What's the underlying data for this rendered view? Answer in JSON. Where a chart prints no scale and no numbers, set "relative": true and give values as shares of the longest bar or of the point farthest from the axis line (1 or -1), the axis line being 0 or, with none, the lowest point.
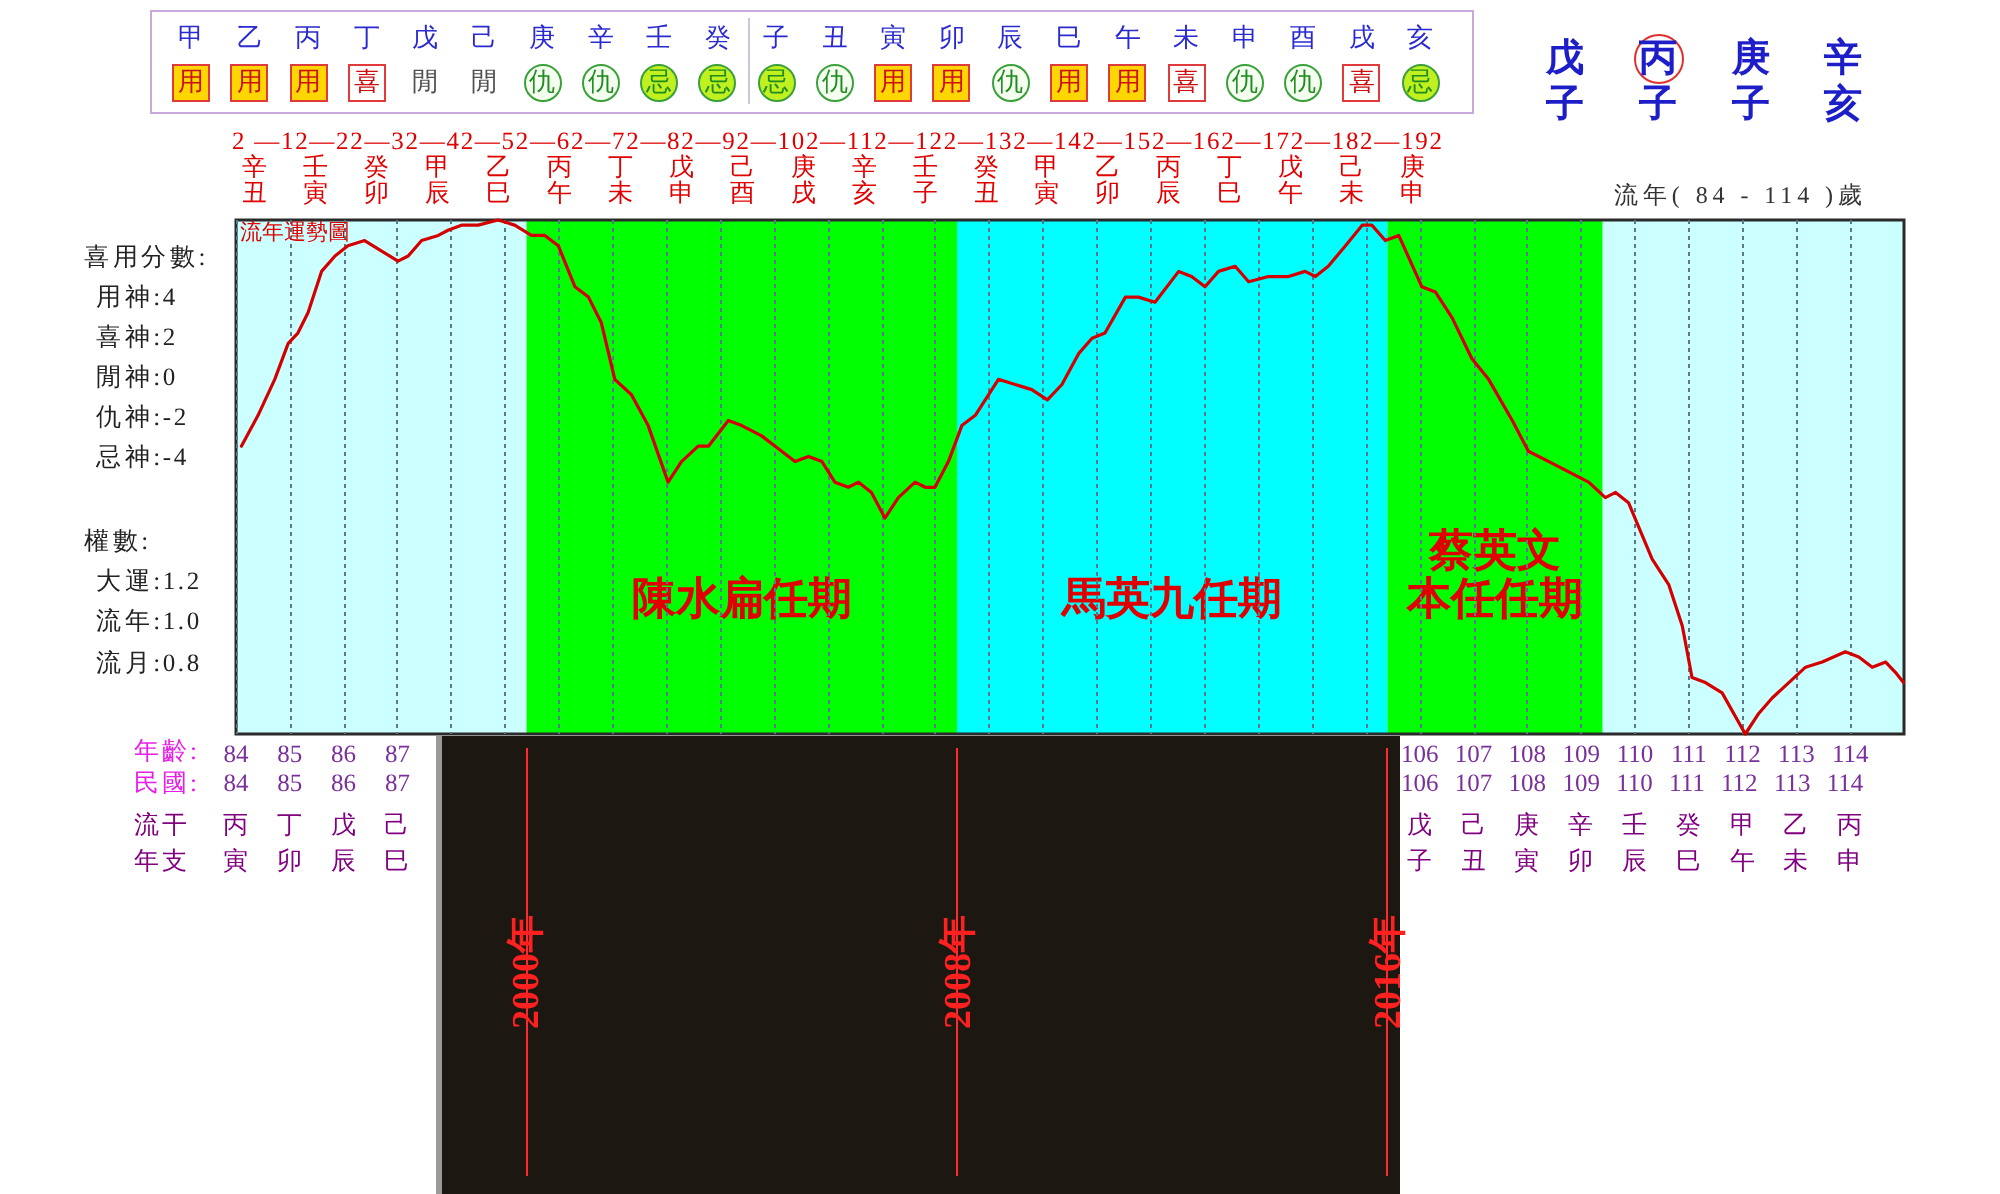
{
  "chart_data": [
    {
      "type": "other",
      "annotations": [
        "甲 乙 丙 丁 戊 己 庚 辛 壬 癸 子 丑 寅 卯 辰 巳 午 未 申 酉 戌 亥",
        "用 用 用 喜 閒 閒 仇 仇 忌 忌 忌 仇 用 用 仇 用 用 喜 仇 仇 喜 忌"
      ],
      "colors": [
        "#ffd700",
        "#ffd700",
        "#ffd700",
        "#ffffff",
        null,
        null,
        "#f4fff0",
        "#f4fff0",
        "#c0f020",
        "#c0f020",
        "#c0f020",
        "#f4fff0",
        "#ffd700",
        "#ffd700",
        "#f4fff0",
        "#ffd700",
        "#ffd700",
        "#ffffff",
        "#f4fff0",
        "#f4fff0",
        "#ffffff",
        "#c0f020"
      ]
    },
    {
      "type": "other",
      "annotations": [
        "戊 丙 庚 辛",
        "子 子 子 亥"
      ],
      "colors": [
        null,
        "#e03030",
        null,
        null
      ]
    },
    {
      "type": "line",
      "title": "流年運勢圖",
      "relative": true,
      "color": "#d40000",
      "x": [
        84.1,
        84.41,
        84.72,
        84.97,
        85.15,
        85.34,
        85.59,
        85.84,
        86.08,
        86.39,
        86.7,
        87.01,
        87.2,
        87.45,
        87.76,
        87.94,
        88.19,
        88.5,
        88.87,
        89.18,
        89.49,
        89.74,
        89.99,
        90.3,
        90.55,
        90.79,
        91.04,
        91.35,
        91.66,
        92.03,
        92.28,
        92.59,
        92.78,
        93.15,
        93.4,
        93.77,
        94.02,
        94.39,
        94.64,
        94.89,
        95.13,
        95.38,
        95.57,
        95.81,
        96.06,
        96.31,
        96.62,
        96.81,
        96.99,
        97.24,
        97.49,
        97.74,
        98.17,
        98.48,
        98.79,
        99.08,
        99.35,
        99.66,
        99.91,
        100.15,
        100.53,
        100.77,
        101.08,
        101.52,
        101.76,
        102.01,
        102.26,
        102.57,
        102.82,
        103.19,
        103.56,
        103.87,
        104.06,
        104.3,
        104.62,
        104.93,
        105.11,
        105.36,
        105.61,
        106.04,
        106.29,
        106.6,
        106.97,
        107.28,
        107.72,
        108.02,
        108.4,
        108.77,
        109.14,
        109.45,
        109.64,
        109.88,
        110.32,
        110.63,
        110.88,
        111.06,
        111.31,
        111.62,
        112.05,
        112.3,
        112.55,
        112.86,
        113.17,
        113.48,
        113.91,
        114.16,
        114.41,
        114.66,
        114.84,
        114.99
      ],
      "values": [
        0.56,
        0.62,
        0.69,
        0.76,
        0.78,
        0.82,
        0.9,
        0.93,
        0.95,
        0.96,
        0.94,
        0.92,
        0.93,
        0.96,
        0.97,
        0.98,
        0.99,
        0.99,
        1,
        0.99,
        0.97,
        0.97,
        0.95,
        0.87,
        0.85,
        0.8,
        0.69,
        0.66,
        0.6,
        0.49,
        0.53,
        0.56,
        0.56,
        0.61,
        0.6,
        0.58,
        0.56,
        0.53,
        0.54,
        0.53,
        0.49,
        0.48,
        0.49,
        0.47,
        0.42,
        0.46,
        0.49,
        0.48,
        0.48,
        0.53,
        0.6,
        0.62,
        0.69,
        0.68,
        0.67,
        0.65,
        0.68,
        0.74,
        0.77,
        0.78,
        0.85,
        0.85,
        0.84,
        0.9,
        0.89,
        0.87,
        0.9,
        0.91,
        0.88,
        0.89,
        0.89,
        0.9,
        0.89,
        0.91,
        0.95,
        0.99,
        0.99,
        0.96,
        0.97,
        0.87,
        0.86,
        0.81,
        0.73,
        0.69,
        0.61,
        0.55,
        0.53,
        0.51,
        0.49,
        0.46,
        0.47,
        0.45,
        0.34,
        0.29,
        0.21,
        0.11,
        0.1,
        0.08,
        0,
        0.04,
        0.07,
        0.1,
        0.13,
        0.14,
        0.16,
        0.15,
        0.13,
        0.14,
        0.12,
        0.1
      ],
      "xlim": [
        84,
        115
      ],
      "xticks": [
        84,
        85,
        86,
        87,
        {
          "value": 88,
          "label": null
        },
        {
          "value": 89,
          "label": null
        },
        {
          "value": 90,
          "label": null
        },
        {
          "value": 91,
          "label": null
        },
        {
          "value": 92,
          "label": null
        },
        {
          "value": 93,
          "label": null
        },
        {
          "value": 94,
          "label": null
        },
        {
          "value": 95,
          "label": null
        },
        {
          "value": 96,
          "label": null
        },
        {
          "value": 97,
          "label": null
        },
        {
          "value": 98,
          "label": null
        },
        {
          "value": 99,
          "label": null
        },
        {
          "value": 100,
          "label": null
        },
        {
          "value": 101,
          "label": null
        },
        {
          "value": 102,
          "label": null
        },
        {
          "value": 103,
          "label": null
        },
        {
          "value": 104,
          "label": null
        },
        {
          "value": 105,
          "label": null
        },
        106,
        107,
        108,
        109,
        110,
        111,
        112,
        113,
        114
      ],
      "grid": "x",
      "bands": [
        {
          "axis": "x",
          "from": 84,
          "to": 89.4,
          "color": "#ccffff"
        },
        {
          "axis": "x",
          "from": 89.4,
          "to": 97.4,
          "label": "陳水扁任期",
          "color": "#00ff00"
        },
        {
          "axis": "x",
          "from": 97.4,
          "to": 105.4,
          "label": "馬英九任期",
          "color": "#00ffff"
        },
        {
          "axis": "x",
          "from": 105.4,
          "to": 109.4,
          "label": "蔡英文本任任期",
          "color": "#00ff00"
        },
        {
          "axis": "x",
          "from": 109.4,
          "to": 115,
          "color": "#ccffff"
        }
      ],
      "annotations": [
        "喜用分數:\n用神:4\n喜神:2\n閒神:0\n仇神:-2\n忌神:-4",
        "權數:\n大運:1.2\n流年:1.0\n流月:0.8",
        "年齡:",
        "民國:",
        "流干",
        "年支",
        "2 —12—22—32—42—52—62—72—82—92—102—112—122—132—142—152—162—172—182—192",
        "辛 壬 癸 甲 乙 丙 丁 戊 己 庚 辛 壬 癸 甲 乙 丙 丁 戊 己 庚",
        "丑 寅 卯 辰 巳 午 未 申 酉 戌 亥 子 丑 寅 卯 辰 巳 午 未 申",
        "流年( 84 - 114 )歲",
        "84 85 86 87",
        "106 107 108 109 110 111 112 113 114",
        "丙 丁 戊 己",
        "戊 己 庚 辛 壬 癸 甲 乙 丙",
        "寅 卯 辰 巳",
        "子 丑 寅 卯 辰 巳 午 未 申",
        "2000年",
        "2008年",
        "2016年"
      ]
    }
  ]
}
